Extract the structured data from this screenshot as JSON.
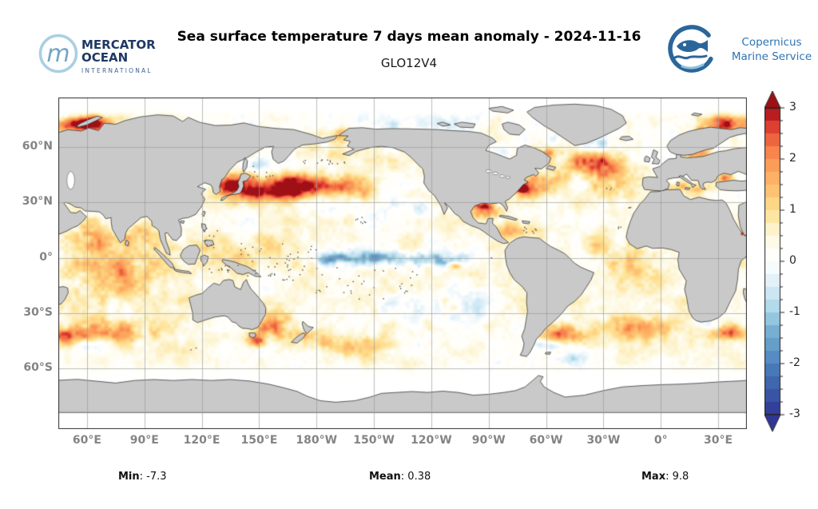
{
  "header": {
    "title": "Sea surface temperature 7 days mean anomaly - 2024-11-16",
    "subtitle": "GLO12V4",
    "mercator_logo": {
      "monogram": "m",
      "line1": "MERCATOR",
      "line2": "OCEAN",
      "line3": "INTERNATIONAL"
    },
    "copernicus_logo": {
      "line1": "Copernicus",
      "line2": "Marine Service"
    }
  },
  "stats": {
    "min_label": "Min",
    "min_value": ": -7.3",
    "mean_label": "Mean",
    "mean_value": ": 0.38",
    "max_label": "Max",
    "max_value": ": 9.8"
  },
  "chart_data": {
    "type": "heatmap",
    "title": "Sea surface temperature 7 days mean anomaly - 2024-11-16",
    "subtitle": "GLO12V4",
    "projection": "equirectangular plate carree, Pacific-centered",
    "units": "degC",
    "lon_extent": [
      45,
      405
    ],
    "lat_extent": [
      -93,
      87
    ],
    "grid_step_deg": 30,
    "x_ticks": [
      {
        "label": "60°E",
        "lon": 60
      },
      {
        "label": "90°E",
        "lon": 90
      },
      {
        "label": "120°E",
        "lon": 120
      },
      {
        "label": "150°E",
        "lon": 150
      },
      {
        "label": "180°W",
        "lon": 180
      },
      {
        "label": "150°W",
        "lon": 210
      },
      {
        "label": "120°W",
        "lon": 240
      },
      {
        "label": "90°W",
        "lon": 270
      },
      {
        "label": "60°W",
        "lon": 300
      },
      {
        "label": "30°W",
        "lon": 330
      },
      {
        "label": "0°",
        "lon": 360
      },
      {
        "label": "30°E",
        "lon": 390
      }
    ],
    "y_ticks": [
      {
        "label": "60°N",
        "lat": 60
      },
      {
        "label": "30°N",
        "lat": 30
      },
      {
        "label": "0°",
        "lat": 0
      },
      {
        "label": "30°S",
        "lat": -30
      },
      {
        "label": "60°S",
        "lat": -60
      }
    ],
    "colorbar": {
      "range": [
        -3,
        3
      ],
      "extend": "both",
      "segments": 24,
      "minor_step": 0.25,
      "major_ticks": [
        {
          "v": 3,
          "label": "3"
        },
        {
          "v": 2,
          "label": "2"
        },
        {
          "v": 1,
          "label": "1"
        },
        {
          "v": 0,
          "label": "0"
        },
        {
          "v": -1,
          "label": "-1"
        },
        {
          "v": -2,
          "label": "-2"
        },
        {
          "v": -3,
          "label": "-3"
        }
      ],
      "stops": [
        [
          -3.0,
          "#313695"
        ],
        [
          -2.6,
          "#3a56a5"
        ],
        [
          -2.2,
          "#4472b5"
        ],
        [
          -1.8,
          "#5a92c6"
        ],
        [
          -1.4,
          "#74add1"
        ],
        [
          -1.0,
          "#a3d3e6"
        ],
        [
          -0.6,
          "#cfe9f4"
        ],
        [
          -0.25,
          "#eef7fb"
        ],
        [
          0.0,
          "#ffffff"
        ],
        [
          0.25,
          "#fffef6"
        ],
        [
          0.6,
          "#fdf4cf"
        ],
        [
          1.0,
          "#fee090"
        ],
        [
          1.4,
          "#fdc272"
        ],
        [
          1.8,
          "#fda55c"
        ],
        [
          2.2,
          "#f67f4b"
        ],
        [
          2.5,
          "#e8543a"
        ],
        [
          2.75,
          "#d32f27"
        ],
        [
          2.9,
          "#b51b20"
        ],
        [
          3.0,
          "#9e1016"
        ]
      ]
    },
    "stats": {
      "min": -7.3,
      "mean": 0.38,
      "max": 9.8
    },
    "land_color": "#c9c9c9",
    "coast_color": "#222222",
    "grid_color": "#9a9a9a",
    "frame_color": "#2e2e2e",
    "noise": {
      "base": 0.32,
      "octaves": [
        [
          26,
          0.62
        ],
        [
          11,
          0.45
        ],
        [
          4.6,
          0.3
        ]
      ]
    },
    "features": [
      [
        "kuroshio-extension-warm",
        152,
        37.5,
        16,
        6,
        2.7
      ],
      [
        "nw-pacific-warm",
        174,
        39,
        16,
        6,
        2.3
      ],
      [
        "japan-sea-warm",
        134,
        40,
        7,
        6,
        2.4
      ],
      [
        "npac-warm-east",
        196,
        37,
        14,
        7,
        1.5
      ],
      [
        "npac-white-gap",
        203,
        27,
        22,
        9,
        -0.5
      ],
      [
        "gulf-of-alaska-mild",
        222,
        52,
        12,
        6,
        0.5
      ],
      [
        "bering-mild-warm",
        186,
        57,
        13,
        5,
        0.8
      ],
      [
        "okhotsk-cold",
        148,
        52,
        7,
        4,
        -0.9
      ],
      [
        "chukchi-warm",
        192,
        67,
        9,
        4,
        1.1
      ],
      [
        "barents-kara-warm-west",
        53,
        72,
        13,
        5,
        2.2
      ],
      [
        "kara-warm",
        62,
        74,
        9,
        4,
        1.7
      ],
      [
        "barents-warm-east",
        394,
        72,
        13,
        5,
        2.1
      ],
      [
        "norwegian-warm",
        382,
        67,
        9,
        4,
        1.2
      ],
      [
        "baltic-north-sea-warm",
        377,
        57,
        8,
        4,
        1.6
      ],
      [
        "natl-subpolar-warm",
        322,
        52,
        16,
        7,
        1.1
      ],
      [
        "gulf-stream-warm",
        291,
        39.5,
        13,
        6,
        1.9
      ],
      [
        "hatteras-red",
        286.5,
        37.5,
        4,
        2.5,
        2.6
      ],
      [
        "labrador-red",
        298,
        55.5,
        6,
        4,
        2.4
      ],
      [
        "hudson-pale",
        272,
        58,
        8,
        6,
        -0.6
      ],
      [
        "cdn-arctic-pale",
        255,
        72,
        25,
        5,
        -0.4
      ],
      [
        "beaufort-pale",
        215,
        72,
        20,
        4,
        -0.3
      ],
      [
        "esiberian-pale",
        165,
        73,
        20,
        4,
        -0.3
      ],
      [
        "greenland-se-cold",
        325,
        62,
        8,
        4,
        -1.3
      ],
      [
        "greenland-w-cold",
        305,
        66,
        5,
        4,
        -0.8
      ],
      [
        "natl-central-warm",
        333,
        47,
        16,
        7,
        1.1
      ],
      [
        "azores-warm",
        335,
        38,
        12,
        6,
        0.8
      ],
      [
        "mediterranean-warm",
        371,
        38,
        13,
        4,
        1.2
      ],
      [
        "black-sea-warm",
        394,
        43.5,
        6,
        2.5,
        1.5
      ],
      [
        "gulf-mexico-warm",
        268,
        25,
        8,
        4,
        1.7
      ],
      [
        "gulf-mexico-red",
        267,
        28.5,
        5,
        2,
        2.3
      ],
      [
        "caribbean-warm",
        283,
        15,
        11,
        4,
        1.3
      ],
      [
        "tropical-atlantic-mild",
        335,
        5,
        20,
        10,
        0.6
      ],
      [
        "eq-atlantic-mild",
        350,
        -8,
        16,
        8,
        0.6
      ],
      [
        "brazil-current-red",
        310,
        -42,
        11,
        5,
        2.1
      ],
      [
        "malvinas-cold",
        303,
        -47,
        8,
        3,
        -1.0
      ],
      [
        "satl-warm-band",
        348,
        -38,
        20,
        6,
        1.3
      ],
      [
        "agulhas-retroflection-red",
        397,
        -40,
        9,
        4,
        2.0
      ],
      [
        "agulhas-leak-cold",
        385,
        -36,
        6,
        3,
        -0.8
      ],
      [
        "cape-cold",
        380,
        -34,
        4,
        2,
        -0.7
      ],
      [
        "wpac-warm-pool",
        140,
        3,
        22,
        9,
        0.55
      ],
      [
        "eq-pacific-cold-central",
        212,
        0,
        26,
        4,
        -1.5
      ],
      [
        "eq-pacific-cold-east",
        243,
        -1,
        16,
        4,
        -1.5
      ],
      [
        "eq-pacific-cold-west",
        184,
        0,
        13,
        3,
        -0.8
      ],
      [
        "se-pacific-pale",
        245,
        -25,
        32,
        12,
        -0.5
      ],
      [
        "peru-warm-spot",
        252,
        -4,
        4,
        2,
        1.5
      ],
      [
        "baja-cold-specks",
        236,
        27,
        6,
        4,
        -0.7
      ],
      [
        "indian-ocean-warm",
        72,
        -8,
        28,
        16,
        1.0
      ],
      [
        "arabian-sea-warm",
        60,
        13,
        10,
        8,
        1.3
      ],
      [
        "bengal-warm",
        87,
        12,
        8,
        6,
        1.1
      ],
      [
        "somali-coast-warm",
        398,
        2,
        6,
        6,
        1.2
      ],
      [
        "s-indian-warm-band",
        75,
        -41,
        30,
        7,
        1.3
      ],
      [
        "agulhas-return-west",
        49,
        -42,
        12,
        5,
        1.6
      ],
      [
        "s-indian-cold-specks",
        62,
        -47,
        15,
        4,
        -0.7
      ],
      [
        "bight-cold",
        127,
        -38,
        8,
        3,
        -0.6
      ],
      [
        "se-indian-cold-specks",
        100,
        -44,
        15,
        4,
        -0.5
      ],
      [
        "tasman-warm",
        157,
        -37,
        10,
        7,
        1.5
      ],
      [
        "tasmania-red",
        148,
        -45,
        5,
        3,
        2.2
      ],
      [
        "nz-east-warm",
        176,
        -43,
        10,
        6,
        1.3
      ],
      [
        "spac-mid-warm",
        195,
        -47,
        18,
        6,
        0.8
      ],
      [
        "scotia-cold",
        312,
        -55,
        10,
        3,
        -0.7
      ]
    ]
  }
}
